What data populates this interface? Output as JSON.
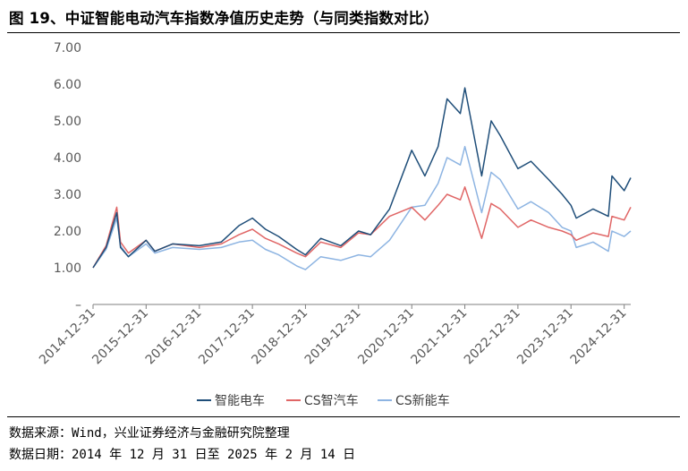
{
  "header": {
    "title": "图 19、中证智能电动汽车指数净值历史走势（与同类指数对比）"
  },
  "footer": {
    "source": "数据来源：Wind，兴业证券经济与金融研究院整理",
    "date": "数据日期：2014 年 12 月 31 日至 2025 年 2 月 14 日"
  },
  "chart_data": {
    "type": "line",
    "title": "",
    "xlabel": "",
    "ylabel": "",
    "ylim": [
      0,
      7
    ],
    "yticks": [
      0,
      1,
      2,
      3,
      4,
      5,
      6,
      7
    ],
    "ytick_labels": [
      "–",
      "1.00",
      "2.00",
      "3.00",
      "4.00",
      "5.00",
      "6.00",
      "7.00"
    ],
    "xlim": [
      "2014-12-31",
      "2025-02-14"
    ],
    "xticks": [
      "2014-12-31",
      "2015-12-31",
      "2016-12-31",
      "2017-12-31",
      "2018-12-31",
      "2019-12-31",
      "2020-12-31",
      "2021-12-31",
      "2022-12-31",
      "2023-12-31",
      "2024-12-31"
    ],
    "grid": false,
    "legend_position": "bottom",
    "series": [
      {
        "name": "智能电车",
        "color": "#1f4e79",
        "x": [
          "2014-12-31",
          "2015-03-31",
          "2015-06-12",
          "2015-07-08",
          "2015-08-31",
          "2015-12-31",
          "2016-02-29",
          "2016-06-30",
          "2016-12-31",
          "2017-05-31",
          "2017-09-30",
          "2017-12-31",
          "2018-03-31",
          "2018-06-30",
          "2018-10-31",
          "2018-12-31",
          "2019-04-15",
          "2019-08-31",
          "2019-12-31",
          "2020-03-23",
          "2020-07-31",
          "2020-12-31",
          "2021-03-31",
          "2021-06-30",
          "2021-08-31",
          "2021-11-30",
          "2021-12-31",
          "2022-04-26",
          "2022-06-30",
          "2022-08-31",
          "2022-12-31",
          "2023-03-31",
          "2023-07-31",
          "2023-10-31",
          "2023-12-31",
          "2024-02-05",
          "2024-05-31",
          "2024-09-13",
          "2024-10-08",
          "2024-12-31",
          "2025-02-14"
        ],
        "y": [
          1.0,
          1.55,
          2.5,
          1.55,
          1.3,
          1.75,
          1.45,
          1.65,
          1.6,
          1.7,
          2.15,
          2.35,
          2.05,
          1.85,
          1.5,
          1.35,
          1.8,
          1.6,
          2.0,
          1.9,
          2.6,
          4.2,
          3.5,
          4.3,
          5.6,
          5.2,
          5.9,
          3.5,
          5.0,
          4.6,
          3.7,
          3.9,
          3.4,
          3.0,
          2.7,
          2.35,
          2.6,
          2.4,
          3.5,
          3.1,
          3.45
        ]
      },
      {
        "name": "CS智汽车",
        "color": "#e06666",
        "x": [
          "2014-12-31",
          "2015-03-31",
          "2015-06-12",
          "2015-07-08",
          "2015-08-31",
          "2015-12-31",
          "2016-02-29",
          "2016-06-30",
          "2016-12-31",
          "2017-05-31",
          "2017-09-30",
          "2017-12-31",
          "2018-03-31",
          "2018-06-30",
          "2018-10-31",
          "2018-12-31",
          "2019-04-15",
          "2019-08-31",
          "2019-12-31",
          "2020-03-23",
          "2020-07-31",
          "2020-12-31",
          "2021-03-31",
          "2021-06-30",
          "2021-08-31",
          "2021-11-30",
          "2021-12-31",
          "2022-04-26",
          "2022-06-30",
          "2022-08-31",
          "2022-12-31",
          "2023-03-31",
          "2023-07-31",
          "2023-10-31",
          "2023-12-31",
          "2024-02-05",
          "2024-05-31",
          "2024-09-13",
          "2024-10-08",
          "2024-12-31",
          "2025-02-14"
        ],
        "y": [
          1.0,
          1.6,
          2.65,
          1.7,
          1.4,
          1.75,
          1.45,
          1.65,
          1.55,
          1.65,
          1.9,
          2.05,
          1.8,
          1.65,
          1.4,
          1.3,
          1.7,
          1.55,
          1.95,
          1.9,
          2.4,
          2.65,
          2.3,
          2.7,
          3.0,
          2.85,
          3.2,
          1.8,
          2.75,
          2.6,
          2.1,
          2.3,
          2.1,
          2.0,
          1.9,
          1.75,
          1.95,
          1.85,
          2.4,
          2.3,
          2.65
        ]
      },
      {
        "name": "CS新能车",
        "color": "#8db4e2",
        "x": [
          "2014-12-31",
          "2015-03-31",
          "2015-06-12",
          "2015-07-08",
          "2015-08-31",
          "2015-12-31",
          "2016-02-29",
          "2016-06-30",
          "2016-12-31",
          "2017-05-31",
          "2017-09-30",
          "2017-12-31",
          "2018-03-31",
          "2018-06-30",
          "2018-10-31",
          "2018-12-31",
          "2019-04-15",
          "2019-08-31",
          "2019-12-31",
          "2020-03-23",
          "2020-07-31",
          "2020-12-31",
          "2021-03-31",
          "2021-06-30",
          "2021-08-31",
          "2021-11-30",
          "2021-12-31",
          "2022-04-26",
          "2022-06-30",
          "2022-08-31",
          "2022-12-31",
          "2023-03-31",
          "2023-07-31",
          "2023-10-31",
          "2023-12-31",
          "2024-02-05",
          "2024-05-31",
          "2024-09-13",
          "2024-10-08",
          "2024-12-31",
          "2025-02-14"
        ],
        "y": [
          1.0,
          1.5,
          2.35,
          1.6,
          1.3,
          1.65,
          1.4,
          1.55,
          1.5,
          1.55,
          1.7,
          1.75,
          1.5,
          1.35,
          1.05,
          0.95,
          1.3,
          1.2,
          1.35,
          1.3,
          1.75,
          2.65,
          2.7,
          3.3,
          4.0,
          3.8,
          4.3,
          2.5,
          3.6,
          3.4,
          2.6,
          2.8,
          2.5,
          2.1,
          2.0,
          1.55,
          1.7,
          1.45,
          2.0,
          1.85,
          2.0
        ]
      }
    ]
  }
}
